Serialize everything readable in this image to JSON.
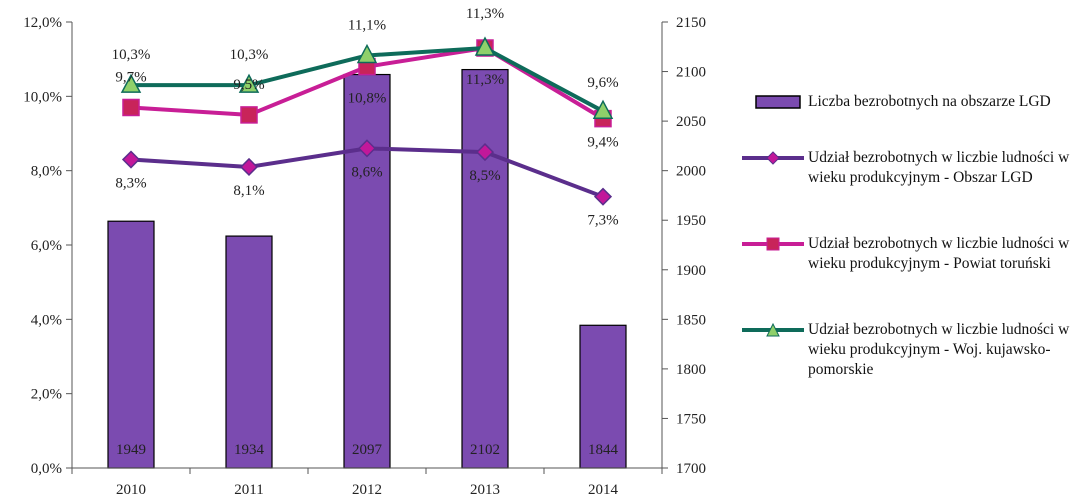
{
  "chart_data": {
    "type": "bar+line",
    "categories": [
      "2010",
      "2011",
      "2012",
      "2013",
      "2014"
    ],
    "bar_series": {
      "name": "Liczba bezrobotnych na obszarze LGD",
      "values": [
        1949,
        1934,
        2097,
        2102,
        1844
      ],
      "value_labels": [
        "1949",
        "1934",
        "2097",
        "2102",
        "1844"
      ],
      "axis": "right",
      "color": "#7B4BB0"
    },
    "line_series": [
      {
        "name": "Udział bezrobotnych w liczbie ludności w wieku produkcyjnym - Obszar LGD",
        "values": [
          8.3,
          8.1,
          8.6,
          8.5,
          7.3
        ],
        "labels": [
          "8,3%",
          "8,1%",
          "8,6%",
          "8,5%",
          "7,3%"
        ],
        "color": "#5B2E8C",
        "marker": "diamond",
        "marker_color": "#C2189A"
      },
      {
        "name": "Udział bezrobotnych w liczbie ludności w wieku produkcyjnym - Powiat toruński",
        "values": [
          9.7,
          9.5,
          10.8,
          11.3,
          9.4
        ],
        "labels": [
          "9,7%",
          "9,5%",
          "10,8%",
          "11,3%",
          "9,4%"
        ],
        "color": "#C81E96",
        "marker": "square",
        "marker_color": "#C8245A"
      },
      {
        "name": "Udział bezrobotnych w liczbie ludności w wieku produkcyjnym - Woj. kujawsko-pomorskie",
        "values": [
          10.3,
          10.3,
          11.1,
          11.3,
          9.6
        ],
        "labels": [
          "10,3%",
          "10,3%",
          "11,1%",
          "11,3%",
          "9,6%"
        ],
        "color": "#0E6B5A",
        "marker": "triangle",
        "marker_color": "#8FD06A"
      }
    ],
    "y_left": {
      "range": [
        0,
        12
      ],
      "ticks": [
        0,
        2,
        4,
        6,
        8,
        10,
        12
      ],
      "tick_labels": [
        "0,0%",
        "2,0%",
        "4,0%",
        "6,0%",
        "8,0%",
        "10,0%",
        "12,0%"
      ]
    },
    "y_right": {
      "range": [
        1700,
        2150
      ],
      "ticks": [
        1700,
        1750,
        1800,
        1850,
        1900,
        1950,
        2000,
        2050,
        2100,
        2150
      ],
      "tick_labels": [
        "1700",
        "1750",
        "1800",
        "1850",
        "1900",
        "1950",
        "2000",
        "2050",
        "2100",
        "2150"
      ]
    },
    "grid": false,
    "legend_position": "right"
  }
}
